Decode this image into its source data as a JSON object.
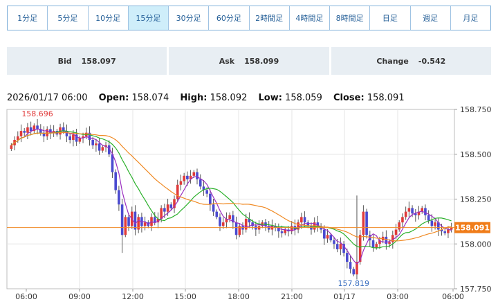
{
  "tabs": [
    {
      "label": "1分足"
    },
    {
      "label": "5分足"
    },
    {
      "label": "10分足"
    },
    {
      "label": "15分足",
      "active": true
    },
    {
      "label": "30分足"
    },
    {
      "label": "60分足"
    },
    {
      "label": "2時間足"
    },
    {
      "label": "4時間足"
    },
    {
      "label": "8時間足"
    },
    {
      "label": "日足"
    },
    {
      "label": "週足"
    },
    {
      "label": "月足"
    }
  ],
  "quotes": {
    "bid_label": "Bid",
    "bid_value": "158.097",
    "ask_label": "Ask",
    "ask_value": "158.099",
    "change_label": "Change",
    "change_value": "-0.542"
  },
  "ohlc": {
    "datetime": "2026/01/17 06:00",
    "open_label": "Open:",
    "open": "158.074",
    "high_label": "High:",
    "high": "158.092",
    "low_label": "Low:",
    "low": "158.059",
    "close_label": "Close:",
    "close": "158.091"
  },
  "chart_data": {
    "type": "candlestick",
    "ylim": [
      157.75,
      158.75
    ],
    "y_ticks": [
      "158.750",
      "158.500",
      "158.250",
      "158.000",
      "157.750"
    ],
    "x_ticks": [
      "06:00",
      "09:00",
      "12:00",
      "15:00",
      "18:00",
      "21:00",
      "01/17",
      "03:00",
      "06:00"
    ],
    "current_price": "158.091",
    "annotations": {
      "high": "158.696",
      "low": "157.819"
    },
    "colors": {
      "up": "#e03a3a",
      "down": "#4a4ad0",
      "ma_fast": "#9a2fc0",
      "ma_mid": "#2bb02b",
      "ma_slow": "#f08a24",
      "price_line": "#f08a24",
      "price_label_bg": "#f07d1a"
    },
    "closes": [
      158.55,
      158.58,
      158.6,
      158.63,
      158.62,
      158.65,
      158.63,
      158.66,
      158.64,
      158.62,
      158.6,
      158.64,
      158.62,
      158.63,
      158.61,
      158.65,
      158.63,
      158.6,
      158.58,
      158.61,
      158.57,
      158.59,
      158.6,
      158.62,
      158.58,
      158.55,
      158.56,
      158.52,
      158.54,
      158.55,
      158.5,
      158.4,
      158.3,
      158.22,
      158.05,
      158.15,
      158.1,
      158.18,
      158.08,
      158.15,
      158.1,
      158.12,
      158.1,
      158.15,
      158.12,
      158.14,
      158.2,
      158.18,
      158.22,
      158.2,
      158.25,
      158.33,
      158.35,
      158.38,
      158.36,
      158.38,
      158.4,
      158.36,
      158.32,
      158.3,
      158.28,
      158.22,
      158.18,
      158.15,
      158.1,
      158.12,
      158.14,
      158.16,
      158.12,
      158.05,
      158.1,
      158.08,
      158.14,
      158.12,
      158.1,
      158.08,
      158.1,
      158.12,
      158.1,
      158.08,
      158.1,
      158.09,
      158.07,
      158.06,
      158.08,
      158.07,
      158.1,
      158.08,
      158.12,
      158.15,
      158.12,
      158.1,
      158.08,
      158.12,
      158.1,
      158.08,
      158.03,
      158.05,
      158.02,
      158.0,
      157.97,
      158.0,
      157.95,
      157.9,
      157.86,
      157.83,
      157.9,
      158.05,
      158.18,
      158.05,
      158.02,
      157.98,
      158.0,
      158.02,
      158.04,
      158.0,
      158.01,
      158.05,
      158.08,
      158.12,
      158.15,
      158.18,
      158.2,
      158.17,
      158.16,
      158.18,
      158.2,
      158.16,
      158.13,
      158.1,
      158.12,
      158.08,
      158.07,
      158.06,
      158.08,
      158.09
    ]
  }
}
